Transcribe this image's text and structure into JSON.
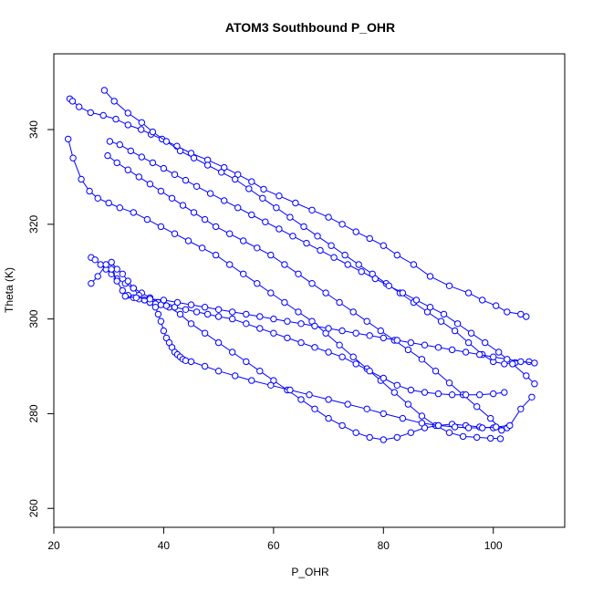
{
  "chart_data": {
    "type": "scatter",
    "title": "ATOM3 Southbound P_OHR",
    "xlabel": "P_OHR",
    "ylabel": "Theta (K)",
    "xlim": [
      20,
      113
    ],
    "ylim": [
      256,
      356
    ],
    "x_ticks": [
      20,
      40,
      60,
      80,
      100
    ],
    "y_ticks": [
      260,
      280,
      300,
      320,
      340
    ],
    "grid": false,
    "legend": "none",
    "marker": "open-circle",
    "color": "#0000ff",
    "series": [
      {
        "x": [
          22.9,
          23.4,
          24.6,
          26.7,
          29.0,
          31.3,
          33.5,
          35.9,
          37.7,
          39.7,
          42.4,
          45.0,
          48.0,
          51.0,
          53.5,
          56.0,
          58.2,
          61.0,
          64.0,
          67.0,
          70.0,
          72.5,
          75.0,
          77.5,
          80.0,
          82.5,
          85.5,
          88.5,
          92.0,
          95.5,
          98.0,
          100.5,
          102.5,
          105.0,
          106.0
        ],
        "y": [
          346.5,
          346.0,
          344.8,
          343.6,
          343.0,
          342.2,
          341.0,
          340.0,
          339.0,
          338.0,
          336.5,
          335.0,
          333.6,
          332.0,
          330.5,
          329.0,
          327.4,
          326.0,
          324.5,
          323.0,
          321.5,
          320.0,
          318.4,
          317.0,
          315.5,
          313.5,
          311.5,
          309.0,
          307.0,
          305.5,
          304.0,
          302.8,
          301.5,
          301.0,
          300.5
        ]
      },
      {
        "x": [
          29.2,
          31.0,
          33.5,
          36.0,
          38.0,
          40.5,
          43.0,
          45.5,
          48.0,
          50.5,
          53.0,
          55.5,
          58.0,
          60.5,
          63.0,
          65.5,
          68.0,
          70.5,
          73.0,
          75.5,
          78.0,
          80.5,
          83.0,
          85.5,
          88.0,
          90.5,
          93.0,
          95.5,
          98.0,
          100.0,
          102.0,
          104.0,
          106.5
        ],
        "y": [
          348.3,
          346.0,
          343.5,
          341.5,
          339.5,
          337.5,
          335.5,
          334.0,
          332.5,
          331.0,
          329.5,
          327.5,
          325.5,
          323.5,
          321.5,
          319.5,
          317.5,
          315.5,
          313.5,
          311.5,
          309.5,
          307.5,
          305.5,
          303.5,
          301.5,
          299.5,
          297.5,
          295.0,
          292.5,
          291.0,
          290.5,
          290.8,
          291.0
        ]
      },
      {
        "x": [
          30.2,
          32.0,
          34.0,
          36.0,
          38.0,
          40.0,
          42.0,
          44.0,
          46.0,
          48.5,
          51.0,
          53.5,
          56.0,
          58.5,
          61.0,
          63.5,
          66.0,
          68.5,
          71.0,
          73.5,
          76.0,
          78.5,
          81.0,
          83.5,
          86.0,
          88.5,
          91.0,
          93.5,
          96.0,
          98.5,
          101.0,
          103.5,
          106.0,
          107.5
        ],
        "y": [
          337.5,
          336.8,
          335.5,
          334.2,
          333.0,
          331.8,
          330.5,
          329.3,
          328.0,
          326.5,
          325.0,
          323.5,
          322.0,
          320.5,
          319.0,
          317.5,
          316.0,
          314.5,
          313.0,
          311.5,
          310.0,
          308.5,
          307.0,
          305.5,
          304.0,
          302.5,
          301.0,
          299.0,
          297.0,
          295.0,
          293.0,
          290.5,
          288.0,
          286.3
        ]
      },
      {
        "x": [
          29.8,
          31.5,
          33.5,
          35.5,
          37.5,
          39.5,
          41.5,
          43.5,
          45.5,
          47.5,
          49.5,
          52.0,
          54.5,
          57.0,
          59.5,
          62.0,
          64.5,
          67.0,
          69.5,
          72.0,
          74.5,
          77.0,
          79.5,
          82.0,
          84.5,
          87.0,
          89.5,
          92.0,
          94.5,
          97.0,
          99.5,
          101.5
        ],
        "y": [
          334.5,
          333.0,
          331.5,
          330.0,
          328.5,
          327.0,
          325.5,
          324.0,
          322.5,
          321.0,
          319.5,
          318.0,
          316.5,
          315.0,
          313.5,
          311.5,
          309.5,
          307.5,
          305.5,
          303.5,
          301.5,
          299.5,
          297.5,
          295.5,
          293.5,
          291.5,
          289.0,
          286.5,
          284.0,
          281.5,
          279.0,
          276.5
        ]
      },
      {
        "x": [
          22.6,
          23.5,
          25.0,
          26.5,
          28.0,
          30.0,
          32.0,
          34.5,
          37.0,
          39.5,
          42.0,
          44.5,
          47.0,
          49.5,
          52.0,
          54.5,
          57.0,
          59.5,
          62.0,
          64.5,
          67.0,
          69.5,
          72.0,
          74.5,
          77.0,
          79.5,
          82.0,
          84.5,
          87.0,
          89.5,
          92.0,
          94.5,
          97.0,
          99.5,
          101.3
        ],
        "y": [
          338.0,
          334.0,
          329.5,
          327.0,
          325.5,
          324.5,
          323.5,
          322.5,
          321.0,
          319.5,
          318.0,
          316.5,
          315.0,
          313.5,
          311.5,
          309.5,
          307.5,
          305.5,
          303.5,
          301.5,
          299.5,
          297.0,
          294.5,
          292.0,
          289.5,
          287.0,
          284.5,
          282.0,
          279.5,
          277.5,
          276.0,
          275.2,
          275.0,
          274.8,
          274.7
        ]
      },
      {
        "x": [
          26.8,
          27.5,
          28.5,
          29.5,
          30.5,
          31.5,
          33.0,
          34.5,
          36.0,
          37.5,
          39.0,
          41.0,
          43.0,
          45.0,
          47.5,
          50.0,
          52.5,
          55.0,
          57.5,
          60.0,
          62.5,
          65.0,
          67.5,
          70.0,
          72.5,
          75.0,
          77.5,
          80.0,
          82.5,
          85.0,
          87.5,
          90.0,
          92.5,
          95.0,
          97.5,
          100.0,
          102.5
        ],
        "y": [
          313.0,
          312.5,
          311.5,
          310.5,
          309.5,
          308.5,
          307.5,
          306.5,
          305.5,
          304.5,
          303.5,
          302.5,
          301.0,
          299.0,
          297.0,
          295.0,
          293.0,
          291.0,
          289.0,
          287.0,
          285.0,
          283.0,
          281.0,
          279.0,
          277.5,
          276.0,
          275.0,
          274.5,
          275.0,
          276.0,
          277.0,
          277.5,
          277.8,
          277.5,
          277.2,
          277.0,
          277.0
        ]
      },
      {
        "x": [
          26.8,
          28.0,
          29.5,
          30.5,
          31.5,
          32.5,
          33.5,
          34.5,
          35.5,
          36.5,
          37.5,
          38.5,
          39.5,
          40.5,
          42.0,
          44.0,
          46.0,
          48.0,
          50.0,
          52.5,
          55.0,
          57.5,
          60.0,
          62.5,
          65.0,
          67.5,
          70.0,
          72.5,
          75.0,
          77.5,
          80.0,
          82.5,
          85.0,
          87.5,
          90.0,
          92.5,
          95.0,
          97.5,
          100.0,
          102.0
        ],
        "y": [
          307.5,
          309.0,
          311.5,
          312.0,
          310.5,
          309.5,
          308.0,
          306.5,
          305.0,
          304.0,
          303.5,
          303.2,
          303.0,
          302.8,
          302.5,
          302.0,
          301.5,
          301.0,
          300.5,
          300.0,
          299.0,
          298.0,
          297.0,
          296.0,
          295.0,
          294.0,
          293.0,
          292.0,
          290.5,
          289.0,
          287.5,
          286.0,
          285.0,
          284.5,
          284.2,
          284.0,
          284.0,
          284.0,
          284.2,
          284.5
        ]
      },
      {
        "x": [
          30.5,
          31.5,
          32.5,
          33.5,
          34.5,
          35.5,
          36.5,
          37.5,
          38.5,
          39.0,
          39.5,
          40.0,
          40.5,
          41.0,
          41.5,
          42.0,
          42.5,
          43.0,
          43.5,
          44.0,
          45.0,
          47.5,
          50.0,
          53.0,
          56.0,
          59.5,
          63.0,
          66.5,
          70.0,
          73.5,
          77.0,
          80.0,
          83.5,
          87.0,
          90.0,
          93.0,
          95.5,
          98.0,
          100.5,
          103.0,
          105.0,
          107.0
        ],
        "y": [
          310.5,
          308.0,
          306.0,
          305.0,
          304.5,
          304.2,
          304.0,
          303.5,
          302.5,
          301.0,
          299.5,
          297.5,
          296.0,
          295.0,
          294.0,
          293.0,
          292.5,
          292.0,
          291.5,
          291.2,
          291.0,
          290.0,
          289.0,
          288.0,
          287.0,
          286.0,
          285.0,
          284.0,
          283.0,
          282.0,
          281.0,
          280.0,
          279.0,
          278.0,
          277.5,
          277.2,
          277.0,
          277.0,
          277.2,
          277.5,
          281.0,
          283.5
        ]
      },
      {
        "x": [
          33.0,
          35.0,
          37.5,
          40.0,
          42.5,
          45.0,
          47.5,
          50.0,
          52.5,
          55.0,
          57.5,
          60.0,
          62.5,
          65.0,
          67.5,
          70.0,
          72.5,
          75.0,
          77.5,
          80.0,
          82.5,
          85.0,
          87.5,
          90.0,
          92.5,
          95.0,
          97.5,
          100.0,
          102.5,
          105.0,
          107.5
        ],
        "y": [
          304.8,
          304.5,
          304.2,
          304.0,
          303.5,
          303.0,
          302.5,
          302.0,
          301.5,
          301.0,
          300.5,
          300.0,
          299.5,
          299.0,
          298.5,
          298.0,
          297.5,
          297.0,
          296.5,
          296.0,
          295.5,
          295.0,
          294.5,
          294.0,
          293.5,
          293.0,
          292.5,
          292.0,
          291.5,
          291.0,
          290.7
        ]
      }
    ]
  }
}
